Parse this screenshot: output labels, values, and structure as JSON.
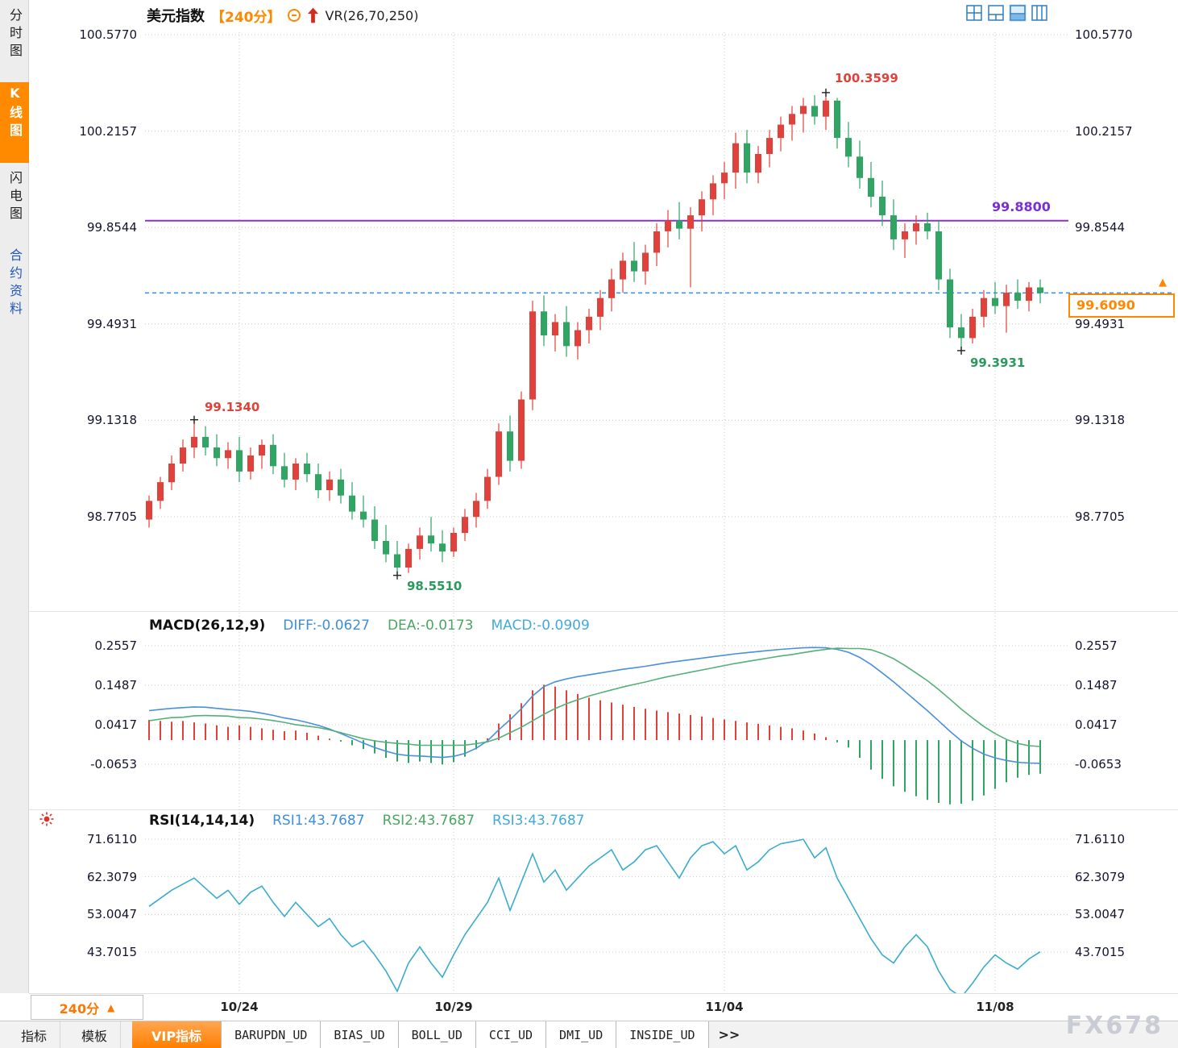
{
  "sidebar": {
    "items": [
      {
        "label": "分时图"
      },
      {
        "label": "K线图"
      },
      {
        "label": "闪电图"
      },
      {
        "label": "合约资料"
      }
    ]
  },
  "header": {
    "symbol": "美元指数",
    "period": "【240分】",
    "indicator": "VR(26,70,250)"
  },
  "macd_panel": {
    "title": "MACD(26,12,9)",
    "diff_label": "DIFF:-0.0627",
    "dea_label": "DEA:-0.0173",
    "macd_label": "MACD:-0.0909"
  },
  "rsi_panel": {
    "title": "RSI(14,14,14)",
    "rsi1_label": "RSI1:43.7687",
    "rsi2_label": "RSI2:43.7687",
    "rsi3_label": "RSI3:43.7687"
  },
  "footer": {
    "period_selector": "240分",
    "period_arrow": "▲",
    "tabs": [
      "指标",
      "模板",
      "VIP指标",
      "BARUPDN_UD",
      "BIAS_UD",
      "BOLL_UD",
      "CCI_UD",
      "DMI_UD",
      "INSIDE_UD",
      ">>"
    ],
    "watermark": "FX678"
  },
  "colors": {
    "up": "#e0413a",
    "down": "#2fa463",
    "diff_line": "#4a90d9",
    "dea_line": "#55b078",
    "rsi_line": "#3aaccc",
    "grid": "#c8c8c8",
    "ref_purple": "#8833cc",
    "last_dashed": "#2e8ded",
    "accent_orange": "#ff8800"
  },
  "chart_data": [
    {
      "type": "candlestick",
      "title": "美元指数 240分 K线 VR(26,70,250)",
      "ylim": [
        98.43,
        100.62
      ],
      "y_ticks": [
        "100.5770",
        "100.2157",
        "99.8544",
        "99.4931",
        "99.1318",
        "98.7705"
      ],
      "x_ticks": [
        {
          "label": "10/24",
          "bar": 8
        },
        {
          "label": "10/29",
          "bar": 27
        },
        {
          "label": "11/04",
          "bar": 51
        },
        {
          "label": "11/08",
          "bar": 75
        }
      ],
      "ref_line": {
        "value": 99.88,
        "label": "99.8800"
      },
      "last": {
        "value": 99.609,
        "label": "99.6090"
      },
      "marked": {
        "left_high": {
          "bar": 4,
          "price": 99.134,
          "label": "99.1340"
        },
        "high": {
          "bar": 60,
          "price": 100.3599,
          "label": "100.3599"
        },
        "low": {
          "bar": 22,
          "price": 98.551,
          "label": "98.5510"
        },
        "right_low": {
          "bar": 72,
          "price": 99.3931,
          "label": "99.3931"
        }
      },
      "candles": [
        [
          98.76,
          98.85,
          98.73,
          98.83
        ],
        [
          98.83,
          98.92,
          98.8,
          98.9
        ],
        [
          98.9,
          99.0,
          98.87,
          98.97
        ],
        [
          98.97,
          99.06,
          98.94,
          99.03
        ],
        [
          99.03,
          99.134,
          98.99,
          99.07
        ],
        [
          99.07,
          99.11,
          99.0,
          99.03
        ],
        [
          99.03,
          99.08,
          98.96,
          98.99
        ],
        [
          98.99,
          99.05,
          98.95,
          99.02
        ],
        [
          99.02,
          99.07,
          98.9,
          98.94
        ],
        [
          98.94,
          99.03,
          98.91,
          99.0
        ],
        [
          99.0,
          99.06,
          98.95,
          99.04
        ],
        [
          99.04,
          99.08,
          98.93,
          98.96
        ],
        [
          98.96,
          99.01,
          98.88,
          98.91
        ],
        [
          98.91,
          98.99,
          98.87,
          98.97
        ],
        [
          98.97,
          99.01,
          98.9,
          98.93
        ],
        [
          98.93,
          98.97,
          98.84,
          98.87
        ],
        [
          98.87,
          98.94,
          98.83,
          98.91
        ],
        [
          98.91,
          98.95,
          98.82,
          98.85
        ],
        [
          98.85,
          98.9,
          98.76,
          98.79
        ],
        [
          98.79,
          98.85,
          98.73,
          98.76
        ],
        [
          98.76,
          98.81,
          98.65,
          98.68
        ],
        [
          98.68,
          98.74,
          98.6,
          98.63
        ],
        [
          98.63,
          98.68,
          98.551,
          98.58
        ],
        [
          98.58,
          98.67,
          98.56,
          98.65
        ],
        [
          98.65,
          98.73,
          98.61,
          98.7
        ],
        [
          98.7,
          98.77,
          98.64,
          98.67
        ],
        [
          98.67,
          98.72,
          98.6,
          98.64
        ],
        [
          98.64,
          98.73,
          98.62,
          98.71
        ],
        [
          98.71,
          98.8,
          98.68,
          98.77
        ],
        [
          98.77,
          98.86,
          98.73,
          98.83
        ],
        [
          98.83,
          98.95,
          98.8,
          98.92
        ],
        [
          98.92,
          99.12,
          98.89,
          99.09
        ],
        [
          99.09,
          99.15,
          98.94,
          98.98
        ],
        [
          98.98,
          99.24,
          98.95,
          99.21
        ],
        [
          99.21,
          99.58,
          99.17,
          99.54
        ],
        [
          99.54,
          99.6,
          99.41,
          99.45
        ],
        [
          99.45,
          99.53,
          99.39,
          99.5
        ],
        [
          99.5,
          99.56,
          99.37,
          99.41
        ],
        [
          99.41,
          99.5,
          99.36,
          99.47
        ],
        [
          99.47,
          99.55,
          99.42,
          99.52
        ],
        [
          99.52,
          99.62,
          99.47,
          99.59
        ],
        [
          99.59,
          99.7,
          99.54,
          99.66
        ],
        [
          99.66,
          99.76,
          99.61,
          99.73
        ],
        [
          99.73,
          99.8,
          99.65,
          99.69
        ],
        [
          99.69,
          99.79,
          99.64,
          99.76
        ],
        [
          99.76,
          99.87,
          99.71,
          99.84
        ],
        [
          99.84,
          99.92,
          99.78,
          99.88
        ],
        [
          99.88,
          99.95,
          99.81,
          99.85
        ],
        [
          99.85,
          99.93,
          99.63,
          99.9
        ],
        [
          99.9,
          99.99,
          99.84,
          99.96
        ],
        [
          99.96,
          100.05,
          99.9,
          100.02
        ],
        [
          100.02,
          100.1,
          99.96,
          100.06
        ],
        [
          100.06,
          100.21,
          100.0,
          100.17
        ],
        [
          100.17,
          100.22,
          100.02,
          100.06
        ],
        [
          100.06,
          100.16,
          100.02,
          100.13
        ],
        [
          100.13,
          100.22,
          100.08,
          100.19
        ],
        [
          100.19,
          100.27,
          100.14,
          100.24
        ],
        [
          100.24,
          100.31,
          100.18,
          100.28
        ],
        [
          100.28,
          100.34,
          100.21,
          100.31
        ],
        [
          100.31,
          100.35,
          100.24,
          100.27
        ],
        [
          100.27,
          100.3599,
          100.22,
          100.33
        ],
        [
          100.33,
          100.34,
          100.15,
          100.19
        ],
        [
          100.19,
          100.25,
          100.08,
          100.12
        ],
        [
          100.12,
          100.18,
          100.0,
          100.04
        ],
        [
          100.04,
          100.1,
          99.93,
          99.97
        ],
        [
          99.97,
          100.03,
          99.86,
          99.9
        ],
        [
          99.9,
          99.96,
          99.77,
          99.81
        ],
        [
          99.81,
          99.87,
          99.74,
          99.84
        ],
        [
          99.84,
          99.9,
          99.79,
          99.87
        ],
        [
          99.87,
          99.91,
          99.81,
          99.84
        ],
        [
          99.84,
          99.88,
          99.62,
          99.66
        ],
        [
          99.66,
          99.7,
          99.44,
          99.48
        ],
        [
          99.48,
          99.53,
          99.3931,
          99.44
        ],
        [
          99.44,
          99.55,
          99.42,
          99.52
        ],
        [
          99.52,
          99.62,
          99.48,
          99.59
        ],
        [
          99.59,
          99.65,
          99.53,
          99.56
        ],
        [
          99.56,
          99.64,
          99.46,
          99.61
        ],
        [
          99.61,
          99.66,
          99.55,
          99.58
        ],
        [
          99.58,
          99.65,
          99.54,
          99.63
        ],
        [
          99.63,
          99.66,
          99.57,
          99.609
        ]
      ]
    },
    {
      "type": "macd",
      "title": "MACD(26,12,9)",
      "ylim": [
        -0.19,
        0.31
      ],
      "y_ticks": [
        "0.2557",
        "0.1487",
        "0.0417",
        "-0.0653"
      ],
      "final": {
        "diff": -0.0627,
        "dea": -0.0173,
        "macd": -0.0909
      },
      "diff": [
        0.08,
        0.083,
        0.086,
        0.088,
        0.09,
        0.089,
        0.086,
        0.083,
        0.081,
        0.078,
        0.073,
        0.067,
        0.06,
        0.055,
        0.048,
        0.04,
        0.03,
        0.018,
        0.005,
        -0.008,
        -0.02,
        -0.03,
        -0.038,
        -0.042,
        -0.043,
        -0.045,
        -0.047,
        -0.044,
        -0.036,
        -0.022,
        -0.002,
        0.028,
        0.055,
        0.085,
        0.12,
        0.145,
        0.158,
        0.166,
        0.172,
        0.177,
        0.182,
        0.187,
        0.192,
        0.196,
        0.2,
        0.205,
        0.21,
        0.214,
        0.218,
        0.222,
        0.226,
        0.23,
        0.234,
        0.237,
        0.24,
        0.243,
        0.246,
        0.248,
        0.25,
        0.251,
        0.25,
        0.246,
        0.238,
        0.224,
        0.205,
        0.182,
        0.158,
        0.132,
        0.106,
        0.08,
        0.052,
        0.024,
        -0.002,
        -0.022,
        -0.038,
        -0.048,
        -0.055,
        -0.06,
        -0.062,
        -0.0627
      ],
      "hist": [
        0.055,
        0.052,
        0.05,
        0.052,
        0.048,
        0.045,
        0.04,
        0.036,
        0.04,
        0.036,
        0.032,
        0.028,
        0.024,
        0.026,
        0.02,
        0.012,
        0.004,
        -0.004,
        -0.014,
        -0.024,
        -0.036,
        -0.048,
        -0.058,
        -0.062,
        -0.058,
        -0.062,
        -0.066,
        -0.06,
        -0.045,
        -0.025,
        0.005,
        0.045,
        0.07,
        0.1,
        0.135,
        0.15,
        0.145,
        0.135,
        0.125,
        0.115,
        0.108,
        0.102,
        0.096,
        0.09,
        0.085,
        0.08,
        0.076,
        0.072,
        0.068,
        0.064,
        0.06,
        0.056,
        0.052,
        0.048,
        0.044,
        0.04,
        0.036,
        0.032,
        0.026,
        0.018,
        0.008,
        -0.006,
        -0.02,
        -0.048,
        -0.08,
        -0.105,
        -0.125,
        -0.14,
        -0.152,
        -0.162,
        -0.17,
        -0.174,
        -0.172,
        -0.164,
        -0.15,
        -0.132,
        -0.114,
        -0.102,
        -0.094,
        -0.0909
      ]
    },
    {
      "type": "rsi",
      "title": "RSI(14,14,14)",
      "ylim": [
        30,
        75
      ],
      "y_ticks": [
        "71.6110",
        "62.3079",
        "53.0047",
        "43.7015"
      ],
      "final": {
        "rsi1": 43.7687,
        "rsi2": 43.7687,
        "rsi3": 43.7687
      },
      "values": [
        55,
        57,
        59,
        60.5,
        62,
        59.5,
        57,
        59,
        55.5,
        58.5,
        60,
        56,
        52.5,
        56,
        53,
        50,
        52,
        48,
        45,
        46.5,
        43,
        39,
        34,
        41,
        45,
        41,
        37.5,
        43,
        48,
        52,
        56,
        62,
        54,
        61,
        68,
        61,
        64,
        59,
        62,
        65,
        67,
        69,
        64,
        66,
        69,
        70,
        66,
        62,
        67,
        70,
        71,
        68,
        70,
        64,
        66,
        69,
        70.5,
        71,
        71.6,
        67,
        69.5,
        62,
        57,
        52,
        47,
        43,
        41,
        45,
        48,
        45,
        39,
        34.5,
        32.5,
        36,
        40,
        43,
        41,
        39.5,
        42,
        43.7687
      ]
    }
  ]
}
